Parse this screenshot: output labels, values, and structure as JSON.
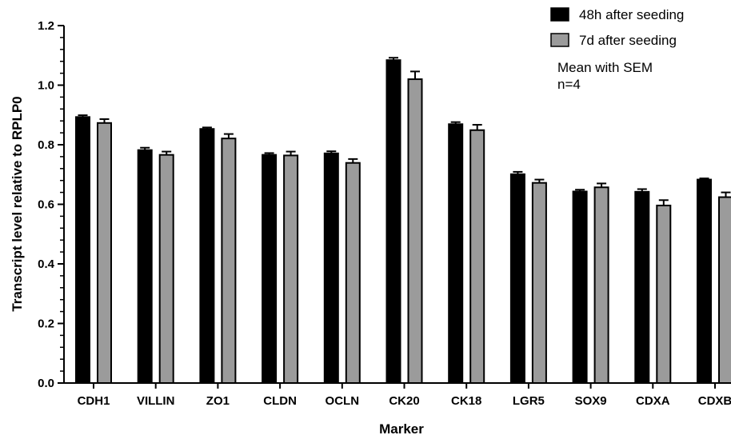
{
  "chart_data": {
    "type": "bar",
    "xlabel": "Marker",
    "ylabel": "Transcript level relative to RPLP0",
    "ylim": [
      0,
      1.2
    ],
    "yticks": [
      "0.0",
      "0.2",
      "0.4",
      "0.6",
      "0.8",
      "1.0",
      "1.2"
    ],
    "ytick_values": [
      0,
      0.2,
      0.4,
      0.6,
      0.8,
      1.0,
      1.2
    ],
    "categories": [
      "CDH1",
      "VILLIN",
      "ZO1",
      "CLDN",
      "OCLN",
      "CK20",
      "CK18",
      "LGR5",
      "SOX9",
      "CDXA",
      "CDXB"
    ],
    "series": [
      {
        "name": "48h after seeding",
        "color": "#000000",
        "values": [
          0.893,
          0.782,
          0.853,
          0.766,
          0.771,
          1.084,
          0.869,
          0.701,
          0.643,
          0.642,
          0.683
        ],
        "errors": [
          0.006,
          0.008,
          0.005,
          0.006,
          0.007,
          0.008,
          0.007,
          0.008,
          0.006,
          0.009,
          0.004
        ]
      },
      {
        "name": "7d after seeding",
        "color": "#9b9b9b",
        "values": [
          0.873,
          0.766,
          0.821,
          0.764,
          0.739,
          1.02,
          0.849,
          0.672,
          0.657,
          0.596,
          0.624
        ],
        "errors": [
          0.013,
          0.011,
          0.015,
          0.013,
          0.013,
          0.026,
          0.018,
          0.011,
          0.013,
          0.018,
          0.016
        ]
      }
    ],
    "legend": {
      "placement": "top-right",
      "entries": [
        "48h after seeding",
        "7d after seeding"
      ],
      "notes": [
        "Mean with SEM",
        "n=4"
      ]
    }
  }
}
